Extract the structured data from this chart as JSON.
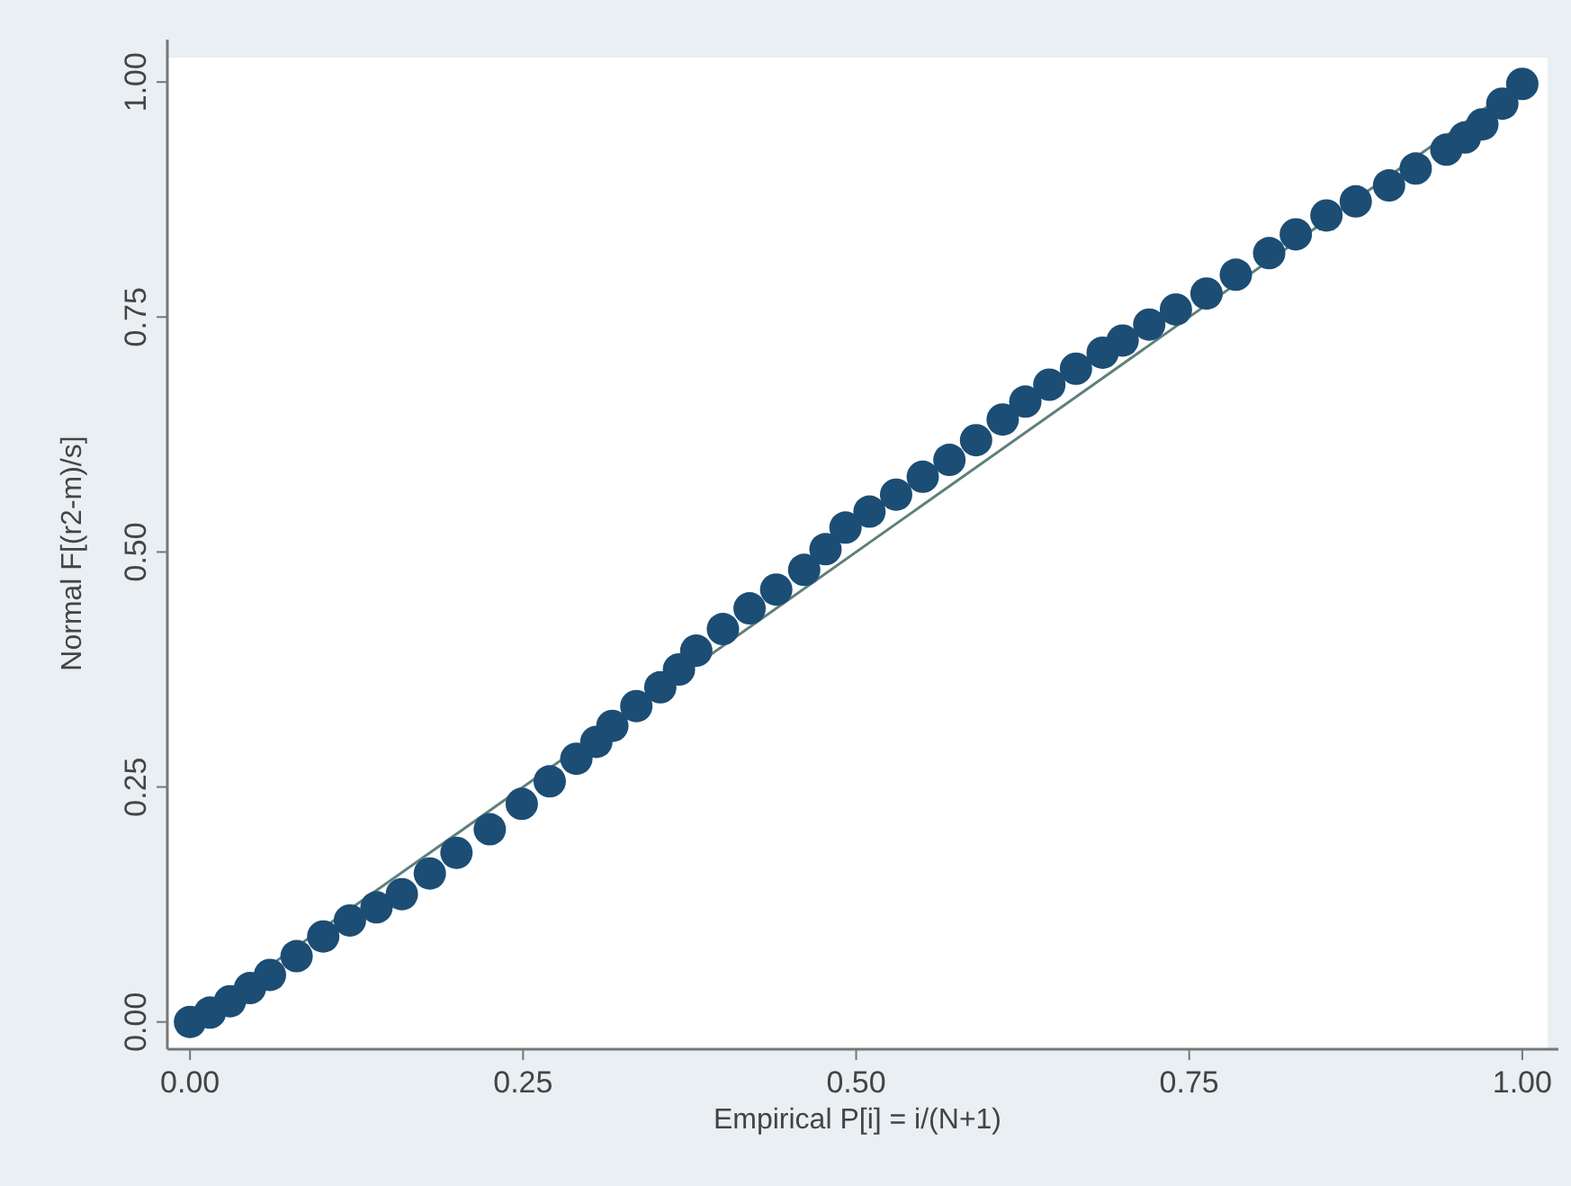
{
  "chart_data": {
    "type": "scatter",
    "xlabel": "Empirical P[i] = i/(N+1)",
    "ylabel": "Normal F[(r2-m)/s]",
    "xlim": [
      -0.017,
      1.019
    ],
    "ylim": [
      -0.029,
      1.026
    ],
    "xticks": [
      {
        "value": 0,
        "label": "0.00"
      },
      {
        "value": 0.25,
        "label": "0.25"
      },
      {
        "value": 0.5,
        "label": "0.50"
      },
      {
        "value": 0.75,
        "label": "0.75"
      },
      {
        "value": 1,
        "label": "1.00"
      }
    ],
    "yticks": [
      {
        "value": 0,
        "label": "0.00"
      },
      {
        "value": 0.25,
        "label": "0.25"
      },
      {
        "value": 0.5,
        "label": "0.50"
      },
      {
        "value": 0.75,
        "label": "0.75"
      },
      {
        "value": 1,
        "label": "1.00"
      }
    ],
    "grid": false,
    "series": [
      {
        "type": "line",
        "color": "#5f807c",
        "marker": "none",
        "line_style": "solid",
        "x": [
          0,
          1
        ],
        "values": [
          0,
          1
        ]
      },
      {
        "color": "#1c4d74",
        "marker": "circle",
        "x": [
          0,
          0.015,
          0.03,
          0.045,
          0.06,
          0.08,
          0.1,
          0.12,
          0.14,
          0.159,
          0.18,
          0.2,
          0.225,
          0.249,
          0.27,
          0.29,
          0.305,
          0.317,
          0.335,
          0.353,
          0.367,
          0.38,
          0.4,
          0.42,
          0.44,
          0.461,
          0.477,
          0.492,
          0.51,
          0.53,
          0.55,
          0.57,
          0.59,
          0.61,
          0.627,
          0.645,
          0.665,
          0.685,
          0.7,
          0.72,
          0.74,
          0.763,
          0.785,
          0.81,
          0.83,
          0.853,
          0.875,
          0.9,
          0.92,
          0.943,
          0.957,
          0.97,
          0.985,
          1.0
        ],
        "values": [
          0,
          0.01,
          0.022,
          0.036,
          0.05,
          0.07,
          0.091,
          0.108,
          0.122,
          0.136,
          0.158,
          0.18,
          0.205,
          0.232,
          0.256,
          0.28,
          0.298,
          0.315,
          0.336,
          0.356,
          0.375,
          0.395,
          0.418,
          0.44,
          0.46,
          0.481,
          0.503,
          0.526,
          0.543,
          0.561,
          0.58,
          0.598,
          0.619,
          0.641,
          0.66,
          0.678,
          0.695,
          0.712,
          0.725,
          0.742,
          0.758,
          0.775,
          0.795,
          0.818,
          0.838,
          0.858,
          0.873,
          0.89,
          0.908,
          0.928,
          0.941,
          0.955,
          0.977,
          0.998
        ]
      }
    ]
  }
}
